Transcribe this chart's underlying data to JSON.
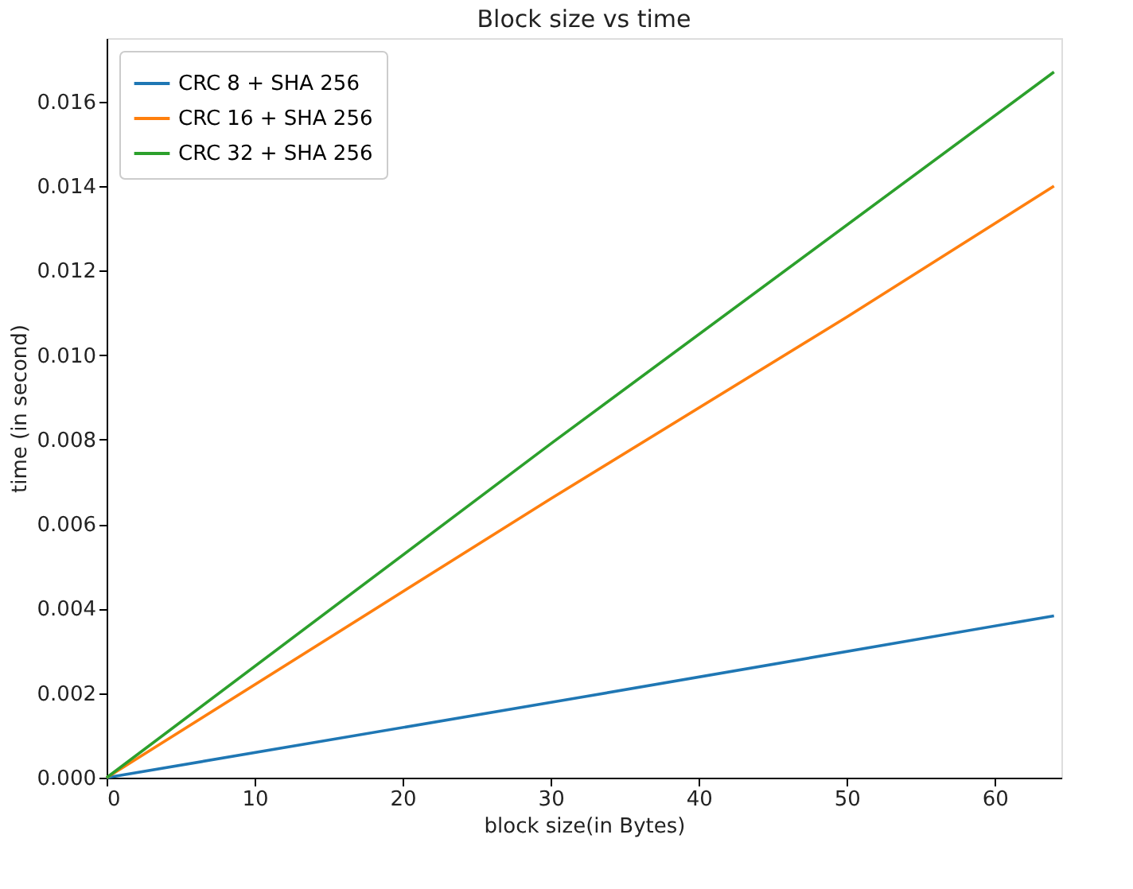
{
  "chart_data": {
    "type": "line",
    "title": "Block size vs time",
    "xlabel": "block size(in Bytes)",
    "ylabel": "time (in second)",
    "xlim": [
      0,
      64.5
    ],
    "xticks": [
      0,
      10,
      20,
      30,
      40,
      50,
      60
    ],
    "ylim": [
      0,
      0.0175
    ],
    "yticks": [
      {
        "value": 0,
        "label": "0.000"
      },
      {
        "value": 0.002,
        "label": "0.002"
      },
      {
        "value": 0.004,
        "label": "0.004"
      },
      {
        "value": 0.006,
        "label": "0.006"
      },
      {
        "value": 0.008,
        "label": "0.008"
      },
      {
        "value": 0.01,
        "label": "0.010"
      },
      {
        "value": 0.012,
        "label": "0.012"
      },
      {
        "value": 0.014,
        "label": "0.014"
      },
      {
        "value": 0.016,
        "label": "0.016"
      }
    ],
    "grid": false,
    "legend": "top left",
    "marker": "none",
    "line_style": "solid",
    "series": [
      {
        "name": "CRC 8 + SHA 256",
        "color": "#1f77b4",
        "x": [
          0,
          32,
          64
        ],
        "values": [
          0,
          0.0019,
          0.00383
        ]
      },
      {
        "name": "CRC 16 + SHA 256",
        "color": "#ff7f0e",
        "x": [
          0,
          30,
          50,
          64
        ],
        "values": [
          0,
          0.0066,
          0.0109,
          0.014
        ]
      },
      {
        "name": "CRC 32 + SHA 256",
        "color": "#2ca02c",
        "x": [
          0,
          30,
          64
        ],
        "values": [
          0,
          0.0079,
          0.0167
        ]
      }
    ]
  }
}
